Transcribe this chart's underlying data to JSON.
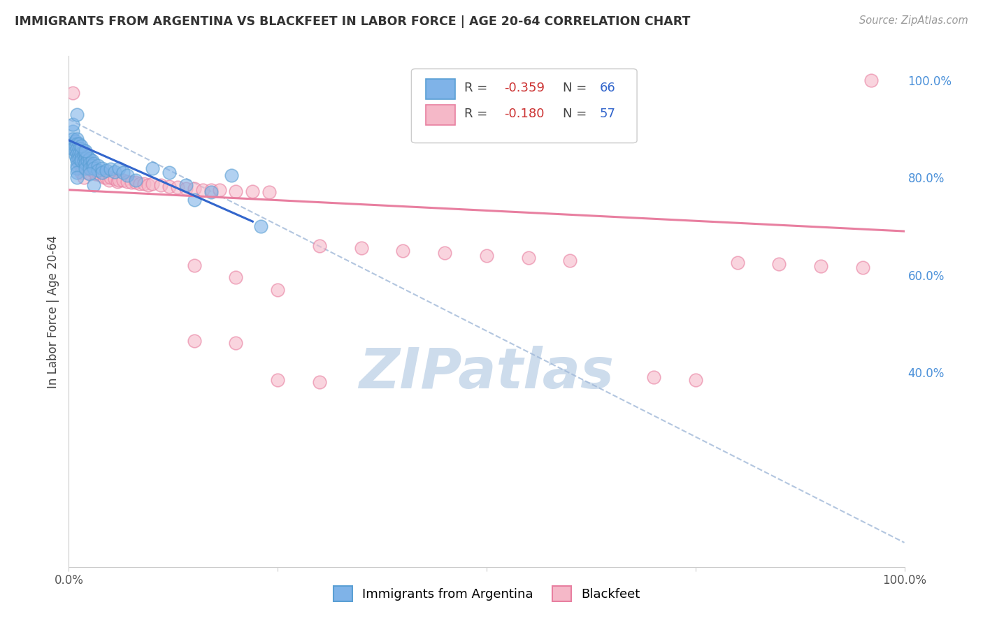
{
  "title": "IMMIGRANTS FROM ARGENTINA VS BLACKFEET IN LABOR FORCE | AGE 20-64 CORRELATION CHART",
  "source": "Source: ZipAtlas.com",
  "ylabel": "In Labor Force | Age 20-64",
  "xlim": [
    0.0,
    1.0
  ],
  "ylim": [
    0.0,
    1.05
  ],
  "argentina_color": "#7fb3e8",
  "argentina_edge": "#5a9fd4",
  "blackfeet_color": "#f5b8c8",
  "blackfeet_edge": "#e87fa0",
  "argentina_line_color": "#3366cc",
  "blackfeet_line_color": "#e87fa0",
  "dash_line_color": "#a0b8d8",
  "watermark_color": "#cddcec",
  "background_color": "#ffffff",
  "grid_color": "#d8d8d8",
  "right_tick_color": "#4a90d9",
  "argentina_scatter": [
    [
      0.005,
      0.895
    ],
    [
      0.005,
      0.88
    ],
    [
      0.005,
      0.87
    ],
    [
      0.005,
      0.86
    ],
    [
      0.008,
      0.875
    ],
    [
      0.008,
      0.865
    ],
    [
      0.008,
      0.855
    ],
    [
      0.008,
      0.845
    ],
    [
      0.01,
      0.88
    ],
    [
      0.01,
      0.87
    ],
    [
      0.01,
      0.86
    ],
    [
      0.01,
      0.85
    ],
    [
      0.01,
      0.84
    ],
    [
      0.01,
      0.835
    ],
    [
      0.01,
      0.825
    ],
    [
      0.01,
      0.82
    ],
    [
      0.01,
      0.81
    ],
    [
      0.01,
      0.8
    ],
    [
      0.012,
      0.87
    ],
    [
      0.012,
      0.86
    ],
    [
      0.012,
      0.85
    ],
    [
      0.012,
      0.84
    ],
    [
      0.015,
      0.86
    ],
    [
      0.015,
      0.85
    ],
    [
      0.015,
      0.84
    ],
    [
      0.015,
      0.835
    ],
    [
      0.018,
      0.855
    ],
    [
      0.018,
      0.845
    ],
    [
      0.018,
      0.835
    ],
    [
      0.02,
      0.85
    ],
    [
      0.02,
      0.84
    ],
    [
      0.02,
      0.83
    ],
    [
      0.02,
      0.82
    ],
    [
      0.022,
      0.845
    ],
    [
      0.022,
      0.835
    ],
    [
      0.025,
      0.84
    ],
    [
      0.025,
      0.83
    ],
    [
      0.025,
      0.82
    ],
    [
      0.028,
      0.835
    ],
    [
      0.028,
      0.825
    ],
    [
      0.03,
      0.83
    ],
    [
      0.03,
      0.82
    ],
    [
      0.035,
      0.825
    ],
    [
      0.035,
      0.815
    ],
    [
      0.04,
      0.82
    ],
    [
      0.04,
      0.81
    ],
    [
      0.045,
      0.815
    ],
    [
      0.05,
      0.818
    ],
    [
      0.055,
      0.812
    ],
    [
      0.06,
      0.82
    ],
    [
      0.065,
      0.81
    ],
    [
      0.005,
      0.91
    ],
    [
      0.01,
      0.93
    ],
    [
      0.015,
      0.865
    ],
    [
      0.02,
      0.855
    ],
    [
      0.025,
      0.808
    ],
    [
      0.03,
      0.785
    ],
    [
      0.07,
      0.805
    ],
    [
      0.08,
      0.795
    ],
    [
      0.1,
      0.82
    ],
    [
      0.12,
      0.81
    ],
    [
      0.14,
      0.785
    ],
    [
      0.15,
      0.755
    ],
    [
      0.17,
      0.77
    ],
    [
      0.195,
      0.805
    ],
    [
      0.23,
      0.7
    ]
  ],
  "blackfeet_scatter": [
    [
      0.005,
      0.975
    ],
    [
      0.01,
      0.855
    ],
    [
      0.012,
      0.83
    ],
    [
      0.015,
      0.81
    ],
    [
      0.018,
      0.8
    ],
    [
      0.02,
      0.825
    ],
    [
      0.022,
      0.81
    ],
    [
      0.025,
      0.82
    ],
    [
      0.028,
      0.815
    ],
    [
      0.03,
      0.815
    ],
    [
      0.032,
      0.808
    ],
    [
      0.035,
      0.81
    ],
    [
      0.038,
      0.805
    ],
    [
      0.04,
      0.81
    ],
    [
      0.042,
      0.8
    ],
    [
      0.045,
      0.8
    ],
    [
      0.048,
      0.795
    ],
    [
      0.05,
      0.8
    ],
    [
      0.055,
      0.798
    ],
    [
      0.058,
      0.792
    ],
    [
      0.06,
      0.795
    ],
    [
      0.065,
      0.795
    ],
    [
      0.07,
      0.792
    ],
    [
      0.075,
      0.79
    ],
    [
      0.08,
      0.79
    ],
    [
      0.085,
      0.788
    ],
    [
      0.09,
      0.788
    ],
    [
      0.095,
      0.785
    ],
    [
      0.1,
      0.788
    ],
    [
      0.11,
      0.785
    ],
    [
      0.12,
      0.782
    ],
    [
      0.13,
      0.78
    ],
    [
      0.14,
      0.778
    ],
    [
      0.15,
      0.778
    ],
    [
      0.16,
      0.775
    ],
    [
      0.17,
      0.775
    ],
    [
      0.18,
      0.775
    ],
    [
      0.2,
      0.772
    ],
    [
      0.22,
      0.772
    ],
    [
      0.24,
      0.77
    ],
    [
      0.15,
      0.62
    ],
    [
      0.2,
      0.595
    ],
    [
      0.25,
      0.57
    ],
    [
      0.3,
      0.66
    ],
    [
      0.35,
      0.655
    ],
    [
      0.4,
      0.65
    ],
    [
      0.45,
      0.645
    ],
    [
      0.5,
      0.64
    ],
    [
      0.55,
      0.635
    ],
    [
      0.6,
      0.63
    ],
    [
      0.15,
      0.465
    ],
    [
      0.2,
      0.46
    ],
    [
      0.25,
      0.385
    ],
    [
      0.3,
      0.38
    ],
    [
      0.7,
      0.39
    ],
    [
      0.75,
      0.385
    ],
    [
      0.8,
      0.625
    ],
    [
      0.85,
      0.622
    ],
    [
      0.9,
      0.618
    ],
    [
      0.95,
      0.615
    ]
  ],
  "argentina_line": {
    "x0": 0.0,
    "y0": 0.877,
    "x1": 0.22,
    "y1": 0.71
  },
  "blackfeet_line": {
    "x0": 0.0,
    "y0": 0.775,
    "x1": 1.0,
    "y1": 0.69
  },
  "dash_line": {
    "x0": 0.0,
    "y0": 0.92,
    "x1": 1.0,
    "y1": 0.05
  }
}
